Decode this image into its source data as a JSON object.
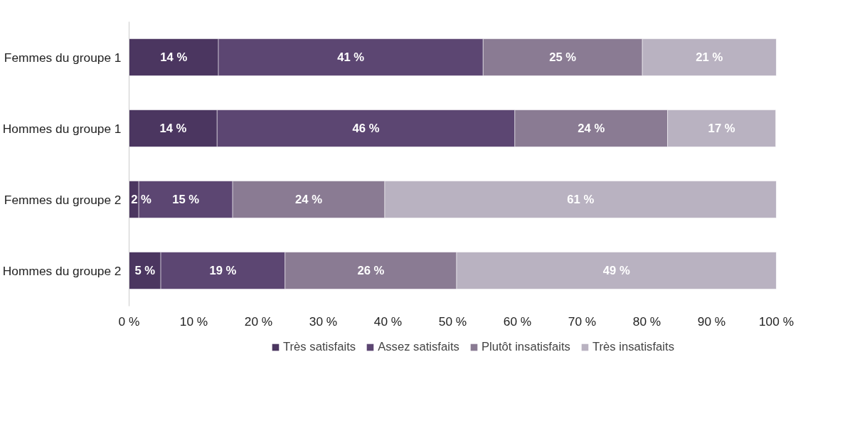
{
  "chart_data": {
    "type": "bar",
    "orientation": "horizontal",
    "stacked": true,
    "categories": [
      "Femmes du groupe 1",
      "Hommes du groupe 1",
      "Femmes du groupe 2",
      "Hommes du groupe 2"
    ],
    "series": [
      {
        "name": "Très satisfaits",
        "color": "#4b3660",
        "values": [
          13.8,
          13.6,
          1.5,
          4.9
        ],
        "value_labels": [
          "14 %",
          "14 %",
          "2 %",
          "5 %"
        ]
      },
      {
        "name": "Assez satisfaits",
        "color": "#5c4672",
        "values": [
          40.9,
          46.0,
          14.5,
          19.2
        ],
        "value_labels": [
          "41 %",
          "46 %",
          "15 %",
          "19 %"
        ]
      },
      {
        "name": "Plutôt insatisfaits",
        "color": "#8a7b93",
        "values": [
          24.6,
          23.6,
          23.5,
          26.5
        ],
        "value_labels": [
          "25 %",
          "24 %",
          "24 %",
          "26 %"
        ]
      },
      {
        "name": "Très insatisfaits",
        "color": "#b9b2c1",
        "values": [
          20.7,
          16.7,
          60.5,
          49.4
        ],
        "value_labels": [
          "21 %",
          "17 %",
          "61 %",
          "49 %"
        ]
      }
    ],
    "xlim": [
      0,
      100
    ],
    "xticks": [
      {
        "value": 0,
        "label": "0 %"
      },
      {
        "value": 10,
        "label": "10 %"
      },
      {
        "value": 20,
        "label": "20 %"
      },
      {
        "value": 30,
        "label": "30 %"
      },
      {
        "value": 40,
        "label": "40 %"
      },
      {
        "value": 50,
        "label": "50 %"
      },
      {
        "value": 60,
        "label": "60 %"
      },
      {
        "value": 70,
        "label": "70 %"
      },
      {
        "value": 80,
        "label": "80 %"
      },
      {
        "value": 90,
        "label": "90 %"
      },
      {
        "value": 100,
        "label": "100 %"
      }
    ],
    "grid": false,
    "legend": "bottom"
  }
}
